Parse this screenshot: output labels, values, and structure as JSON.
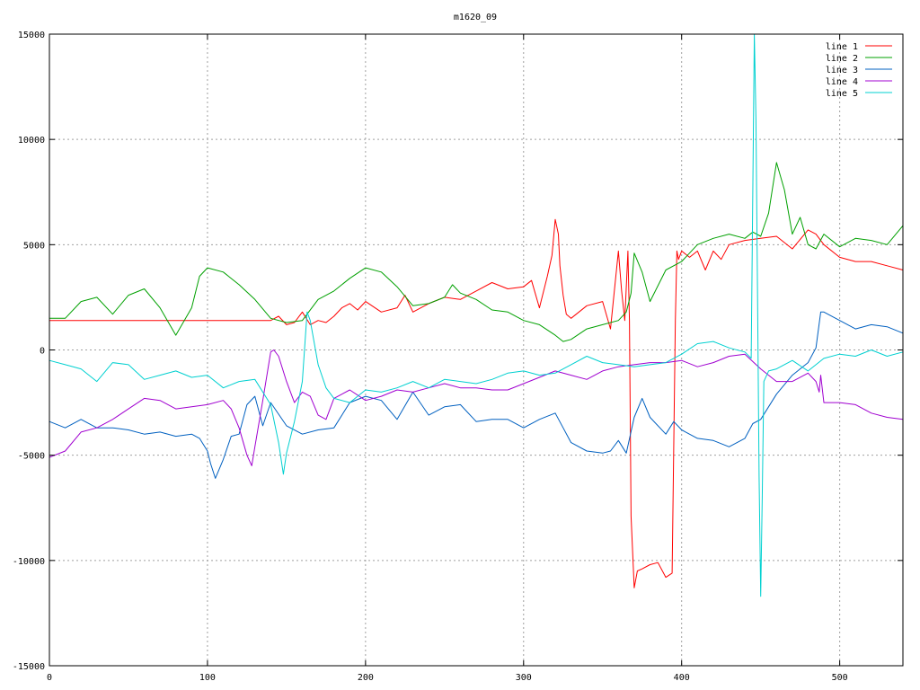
{
  "chart_data": {
    "type": "line",
    "title": "m1620_09",
    "xlabel": "",
    "ylabel": "",
    "xlim": [
      0,
      540
    ],
    "ylim": [
      -15000,
      15000
    ],
    "xticks": [
      0,
      100,
      200,
      300,
      400,
      500
    ],
    "yticks": [
      -15000,
      -10000,
      -5000,
      0,
      5000,
      10000,
      15000
    ],
    "grid": true,
    "legend_position": "top-right",
    "series": [
      {
        "name": "line 1",
        "color": "#ff0000",
        "x": [
          0,
          10,
          20,
          40,
          60,
          80,
          100,
          120,
          140,
          145,
          150,
          155,
          160,
          165,
          170,
          175,
          180,
          185,
          190,
          195,
          200,
          210,
          220,
          225,
          230,
          240,
          250,
          260,
          270,
          280,
          290,
          300,
          305,
          310,
          315,
          318,
          320,
          322,
          323,
          325,
          327,
          330,
          340,
          350,
          355,
          360,
          362,
          364,
          366,
          367,
          368,
          370,
          372,
          375,
          380,
          385,
          390,
          394,
          396,
          397,
          398,
          400,
          405,
          410,
          415,
          420,
          425,
          430,
          440,
          450,
          460,
          470,
          480,
          485,
          490,
          500,
          510,
          520,
          530,
          540
        ],
        "y": [
          1400,
          1400,
          1400,
          1400,
          1400,
          1400,
          1400,
          1400,
          1400,
          1600,
          1200,
          1300,
          1800,
          1200,
          1400,
          1300,
          1600,
          2000,
          2200,
          1900,
          2300,
          1800,
          2000,
          2600,
          1800,
          2200,
          2500,
          2400,
          2800,
          3200,
          2900,
          3000,
          3300,
          2000,
          3500,
          4500,
          6200,
          5500,
          4000,
          2600,
          1700,
          1500,
          2100,
          2300,
          1000,
          4700,
          2800,
          1400,
          4700,
          1400,
          -7900,
          -11300,
          -10500,
          -10400,
          -10200,
          -10100,
          -10800,
          -10600,
          1400,
          4700,
          4300,
          4700,
          4400,
          4700,
          3800,
          4700,
          4300,
          5000,
          5200,
          5300,
          5400,
          4800,
          5700,
          5500,
          5000,
          4400,
          4200,
          4200,
          4000,
          3800
        ]
      },
      {
        "name": "line 2",
        "color": "#00a000",
        "x": [
          0,
          10,
          20,
          30,
          40,
          50,
          60,
          70,
          80,
          90,
          95,
          100,
          110,
          120,
          130,
          140,
          150,
          160,
          170,
          180,
          190,
          200,
          210,
          220,
          230,
          240,
          250,
          255,
          260,
          270,
          280,
          290,
          300,
          310,
          320,
          325,
          330,
          340,
          350,
          360,
          365,
          368,
          370,
          375,
          380,
          390,
          400,
          410,
          420,
          430,
          440,
          445,
          450,
          455,
          460,
          465,
          470,
          475,
          480,
          485,
          490,
          500,
          510,
          520,
          530,
          540
        ],
        "y": [
          1500,
          1500,
          2300,
          2500,
          1700,
          2600,
          2900,
          2000,
          700,
          2000,
          3500,
          3900,
          3700,
          3100,
          2400,
          1500,
          1300,
          1400,
          2400,
          2800,
          3400,
          3900,
          3700,
          3000,
          2100,
          2200,
          2500,
          3100,
          2700,
          2400,
          1900,
          1800,
          1400,
          1200,
          700,
          400,
          500,
          1000,
          1200,
          1400,
          1800,
          2700,
          4600,
          3700,
          2300,
          3800,
          4200,
          5000,
          5300,
          5500,
          5300,
          5600,
          5400,
          6500,
          8900,
          7600,
          5500,
          6300,
          5000,
          4800,
          5500,
          4900,
          5300,
          5200,
          5000,
          5900
        ]
      },
      {
        "name": "line 3",
        "color": "#0060c0",
        "x": [
          0,
          10,
          20,
          30,
          40,
          50,
          60,
          70,
          80,
          90,
          95,
          100,
          102,
          105,
          110,
          115,
          120,
          125,
          130,
          135,
          140,
          150,
          160,
          170,
          180,
          190,
          200,
          210,
          220,
          230,
          240,
          250,
          260,
          270,
          280,
          290,
          300,
          310,
          320,
          325,
          330,
          340,
          350,
          355,
          360,
          365,
          370,
          375,
          380,
          390,
          395,
          400,
          410,
          420,
          430,
          440,
          445,
          450,
          460,
          470,
          480,
          485,
          488,
          490,
          500,
          510,
          520,
          530,
          540
        ],
        "y": [
          -3400,
          -3700,
          -3300,
          -3700,
          -3700,
          -3800,
          -4000,
          -3900,
          -4100,
          -4000,
          -4200,
          -4800,
          -5400,
          -6100,
          -5200,
          -4100,
          -4000,
          -2600,
          -2200,
          -3600,
          -2500,
          -3600,
          -4000,
          -3800,
          -3700,
          -2500,
          -2200,
          -2400,
          -3300,
          -2000,
          -3100,
          -2700,
          -2600,
          -3400,
          -3300,
          -3300,
          -3700,
          -3300,
          -3000,
          -3700,
          -4400,
          -4800,
          -4900,
          -4800,
          -4300,
          -4900,
          -3200,
          -2300,
          -3200,
          -4000,
          -3400,
          -3800,
          -4200,
          -4300,
          -4600,
          -4200,
          -3500,
          -3300,
          -2100,
          -1200,
          -600,
          100,
          1800,
          1800,
          1400,
          1000,
          1200,
          1100,
          800
        ]
      },
      {
        "name": "line 4",
        "color": "#a000d0",
        "x": [
          0,
          10,
          20,
          30,
          40,
          50,
          60,
          70,
          80,
          90,
          100,
          110,
          115,
          120,
          125,
          128,
          130,
          135,
          140,
          142,
          145,
          150,
          155,
          160,
          165,
          170,
          175,
          180,
          190,
          200,
          210,
          220,
          230,
          240,
          250,
          260,
          270,
          280,
          290,
          300,
          310,
          320,
          330,
          340,
          350,
          360,
          370,
          380,
          390,
          400,
          410,
          420,
          430,
          440,
          450,
          460,
          470,
          480,
          485,
          487,
          488,
          490,
          500,
          510,
          520,
          530,
          540
        ],
        "y": [
          -5100,
          -4800,
          -3900,
          -3700,
          -3300,
          -2800,
          -2300,
          -2400,
          -2800,
          -2700,
          -2600,
          -2400,
          -2800,
          -3700,
          -5000,
          -5500,
          -4600,
          -2400,
          -100,
          0,
          -300,
          -1500,
          -2500,
          -2000,
          -2200,
          -3100,
          -3300,
          -2300,
          -1900,
          -2400,
          -2200,
          -1900,
          -2000,
          -1800,
          -1600,
          -1800,
          -1800,
          -1900,
          -1900,
          -1600,
          -1300,
          -1000,
          -1200,
          -1400,
          -1000,
          -800,
          -700,
          -600,
          -600,
          -500,
          -800,
          -600,
          -300,
          -200,
          -900,
          -1500,
          -1500,
          -1100,
          -1500,
          -2000,
          -1200,
          -2500,
          -2500,
          -2600,
          -3000,
          -3200,
          -3300
        ]
      },
      {
        "name": "line 5",
        "color": "#00d0d0",
        "x": [
          0,
          10,
          20,
          30,
          40,
          50,
          60,
          70,
          80,
          90,
          100,
          110,
          120,
          130,
          140,
          145,
          148,
          150,
          155,
          160,
          163,
          165,
          170,
          175,
          180,
          190,
          200,
          210,
          220,
          230,
          240,
          250,
          260,
          270,
          280,
          290,
          300,
          310,
          320,
          330,
          340,
          350,
          360,
          370,
          380,
          390,
          400,
          410,
          420,
          430,
          440,
          444,
          446,
          447,
          448,
          449,
          450,
          451,
          452,
          455,
          460,
          470,
          480,
          490,
          500,
          510,
          520,
          530,
          540
        ],
        "y": [
          -500,
          -700,
          -900,
          -1500,
          -600,
          -700,
          -1400,
          -1200,
          -1000,
          -1300,
          -1200,
          -1800,
          -1500,
          -1400,
          -2600,
          -4400,
          -5900,
          -4900,
          -3400,
          -1500,
          1800,
          1400,
          -700,
          -1800,
          -2300,
          -2500,
          -1900,
          -2000,
          -1800,
          -1500,
          -1800,
          -1400,
          -1500,
          -1600,
          -1400,
          -1100,
          -1000,
          -1200,
          -1100,
          -700,
          -300,
          -600,
          -700,
          -800,
          -700,
          -600,
          -200,
          300,
          400,
          100,
          -100,
          -400,
          15000,
          11000,
          3000,
          -6000,
          -11700,
          -7000,
          -1500,
          -1000,
          -900,
          -500,
          -1000,
          -400,
          -200,
          -300,
          0,
          -300,
          -100
        ]
      }
    ]
  }
}
